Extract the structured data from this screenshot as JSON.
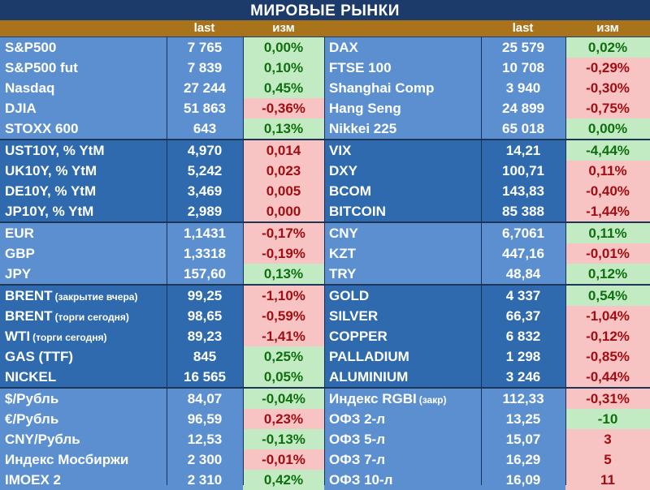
{
  "title": "МИРОВЫЕ РЫНКИ",
  "headers": {
    "left_last": "last",
    "left_chg": "изм",
    "right_last": "last",
    "right_chg": "изм"
  },
  "colors": {
    "group_light": "#5b8fd0",
    "group_dark": "#2f6aae",
    "header": "#a8731a",
    "positive_bg": "#c3ebc3",
    "negative_bg": "#f8c3c3"
  },
  "groups": [
    {
      "rows": [
        {
          "l": {
            "name": "S&P500",
            "last": "7 765",
            "chg": "0,00%",
            "sign": "pos"
          },
          "r": {
            "name": "DAX",
            "last": "25 579",
            "chg": "0,02%",
            "sign": "pos"
          }
        },
        {
          "l": {
            "name": "S&P500 fut",
            "last": "7 839",
            "chg": "0,10%",
            "sign": "pos"
          },
          "r": {
            "name": "FTSE 100",
            "last": "10 708",
            "chg": "-0,29%",
            "sign": "neg"
          }
        },
        {
          "l": {
            "name": "Nasdaq",
            "last": "27 244",
            "chg": "0,45%",
            "sign": "pos"
          },
          "r": {
            "name": "Shanghai Comp",
            "last": "3 940",
            "chg": "-0,30%",
            "sign": "neg"
          }
        },
        {
          "l": {
            "name": "DJIA",
            "last": "51 863",
            "chg": "-0,36%",
            "sign": "neg"
          },
          "r": {
            "name": "Hang Seng",
            "last": "24 899",
            "chg": "-0,75%",
            "sign": "neg"
          }
        },
        {
          "l": {
            "name": "STOXX 600",
            "last": "643",
            "chg": "0,13%",
            "sign": "pos"
          },
          "r": {
            "name": "Nikkei 225",
            "last": "65 018",
            "chg": "0,00%",
            "sign": "pos"
          }
        }
      ]
    },
    {
      "rows": [
        {
          "l": {
            "name": "UST10Y, % YtM",
            "last": "4,970",
            "chg": "0,014",
            "sign": "neg"
          },
          "r": {
            "name": "VIX",
            "last": "14,21",
            "chg": "-4,44%",
            "sign": "pos"
          }
        },
        {
          "l": {
            "name": "UK10Y, % YtM",
            "last": "5,242",
            "chg": "0,023",
            "sign": "neg"
          },
          "r": {
            "name": "DXY",
            "last": "100,71",
            "chg": "0,11%",
            "sign": "neg"
          }
        },
        {
          "l": {
            "name": "DE10Y, % YtM",
            "last": "3,469",
            "chg": "0,005",
            "sign": "neg"
          },
          "r": {
            "name": "BCOM",
            "last": "143,83",
            "chg": "-0,40%",
            "sign": "neg"
          }
        },
        {
          "l": {
            "name": "JP10Y, % YtM",
            "last": "2,989",
            "chg": "0,000",
            "sign": "neg"
          },
          "r": {
            "name": "BITCOIN",
            "last": "85 388",
            "chg": "-1,44%",
            "sign": "neg"
          }
        }
      ]
    },
    {
      "rows": [
        {
          "l": {
            "name": "EUR",
            "last": "1,1431",
            "chg": "-0,17%",
            "sign": "neg"
          },
          "r": {
            "name": "CNY",
            "last": "6,7061",
            "chg": "0,11%",
            "sign": "pos"
          }
        },
        {
          "l": {
            "name": "GBP",
            "last": "1,3318",
            "chg": "-0,19%",
            "sign": "neg"
          },
          "r": {
            "name": "KZT",
            "last": "447,16",
            "chg": "-0,01%",
            "sign": "neg"
          }
        },
        {
          "l": {
            "name": "JPY",
            "last": "157,60",
            "chg": "0,13%",
            "sign": "pos"
          },
          "r": {
            "name": "TRY",
            "last": "48,84",
            "chg": "0,12%",
            "sign": "pos"
          }
        }
      ]
    },
    {
      "rows": [
        {
          "l": {
            "name": "BRENT",
            "note": "(закрытие вчера)",
            "last": "99,25",
            "chg": "-1,10%",
            "sign": "neg"
          },
          "r": {
            "name": "GOLD",
            "last": "4 337",
            "chg": "0,54%",
            "sign": "pos"
          }
        },
        {
          "l": {
            "name": "BRENT",
            "note": "(торги сегодня)",
            "last": "98,65",
            "chg": "-0,59%",
            "sign": "neg"
          },
          "r": {
            "name": "SILVER",
            "last": "66,37",
            "chg": "-1,04%",
            "sign": "neg"
          }
        },
        {
          "l": {
            "name": "WTI",
            "note": "(торги сегодня)",
            "last": "89,23",
            "chg": "-1,41%",
            "sign": "neg"
          },
          "r": {
            "name": "COPPER",
            "last": "6 832",
            "chg": "-0,12%",
            "sign": "neg"
          }
        },
        {
          "l": {
            "name": "GAS (TTF)",
            "last": "845",
            "chg": "0,25%",
            "sign": "pos"
          },
          "r": {
            "name": "PALLADIUM",
            "last": "1 298",
            "chg": "-0,85%",
            "sign": "neg"
          }
        },
        {
          "l": {
            "name": "NICKEL",
            "last": "16 565",
            "chg": "0,05%",
            "sign": "pos"
          },
          "r": {
            "name": "ALUMINIUM",
            "last": "3 246",
            "chg": "-0,44%",
            "sign": "neg"
          }
        }
      ]
    },
    {
      "rows": [
        {
          "l": {
            "name": "$/Рубль",
            "last": "84,07",
            "chg": "-0,04%",
            "sign": "pos"
          },
          "r": {
            "name": "Индекс RGBI",
            "note": "(закр)",
            "last": "112,33",
            "chg": "-0,31%",
            "sign": "neg"
          }
        },
        {
          "l": {
            "name": "€/Рубль",
            "last": "96,59",
            "chg": "0,23%",
            "sign": "neg"
          },
          "r": {
            "name": "ОФЗ 2-л",
            "last": "13,25",
            "chg": "-10",
            "sign": "pos"
          }
        },
        {
          "l": {
            "name": "CNY/Рубль",
            "last": "12,53",
            "chg": "-0,13%",
            "sign": "pos"
          },
          "r": {
            "name": "ОФЗ 5-л",
            "last": "15,07",
            "chg": "3",
            "sign": "neg"
          }
        },
        {
          "l": {
            "name": "Индекс Мосбиржи",
            "last": "2 300",
            "chg": "-0,01%",
            "sign": "neg"
          },
          "r": {
            "name": "ОФЗ 7-л",
            "last": "16,29",
            "chg": "5",
            "sign": "neg"
          }
        },
        {
          "l": {
            "name": "IMOEX 2",
            "last": "2 310",
            "chg": "0,42%",
            "sign": "pos"
          },
          "r": {
            "name": "ОФЗ 10-л",
            "last": "16,09",
            "chg": "11",
            "sign": "neg"
          }
        }
      ]
    }
  ]
}
